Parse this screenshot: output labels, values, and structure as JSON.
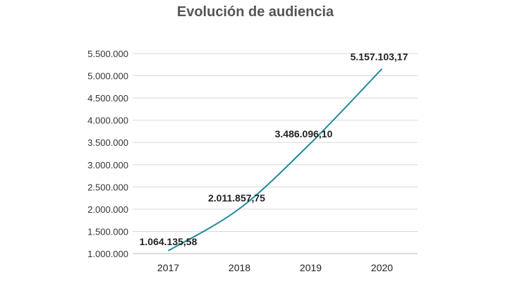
{
  "chart_data": {
    "type": "line",
    "title": "Evolución de audiencia",
    "xlabel": "",
    "ylabel": "",
    "categories": [
      "2017",
      "2018",
      "2019",
      "2020"
    ],
    "values": [
      1064135.58,
      2011857.75,
      3486096.1,
      5157103.17
    ],
    "data_labels": [
      "1.064.135,58",
      "2.011.857,75",
      "3.486.096,10",
      "5.157.103,17"
    ],
    "y_tick_values": [
      1000000,
      1500000,
      2000000,
      2500000,
      3000000,
      3500000,
      4000000,
      4500000,
      5000000,
      5500000
    ],
    "y_tick_labels": [
      "1.000.000",
      "1.500.000",
      "2.000.000",
      "2.500.000",
      "3.000.000",
      "3.500.000",
      "4.000.000",
      "4.500.000",
      "5.000.000",
      "5.500.000"
    ],
    "ylim": [
      1000000,
      5500000
    ],
    "grid": true,
    "legend": "none",
    "line_color": "#1f8a9c",
    "smooth": true
  }
}
